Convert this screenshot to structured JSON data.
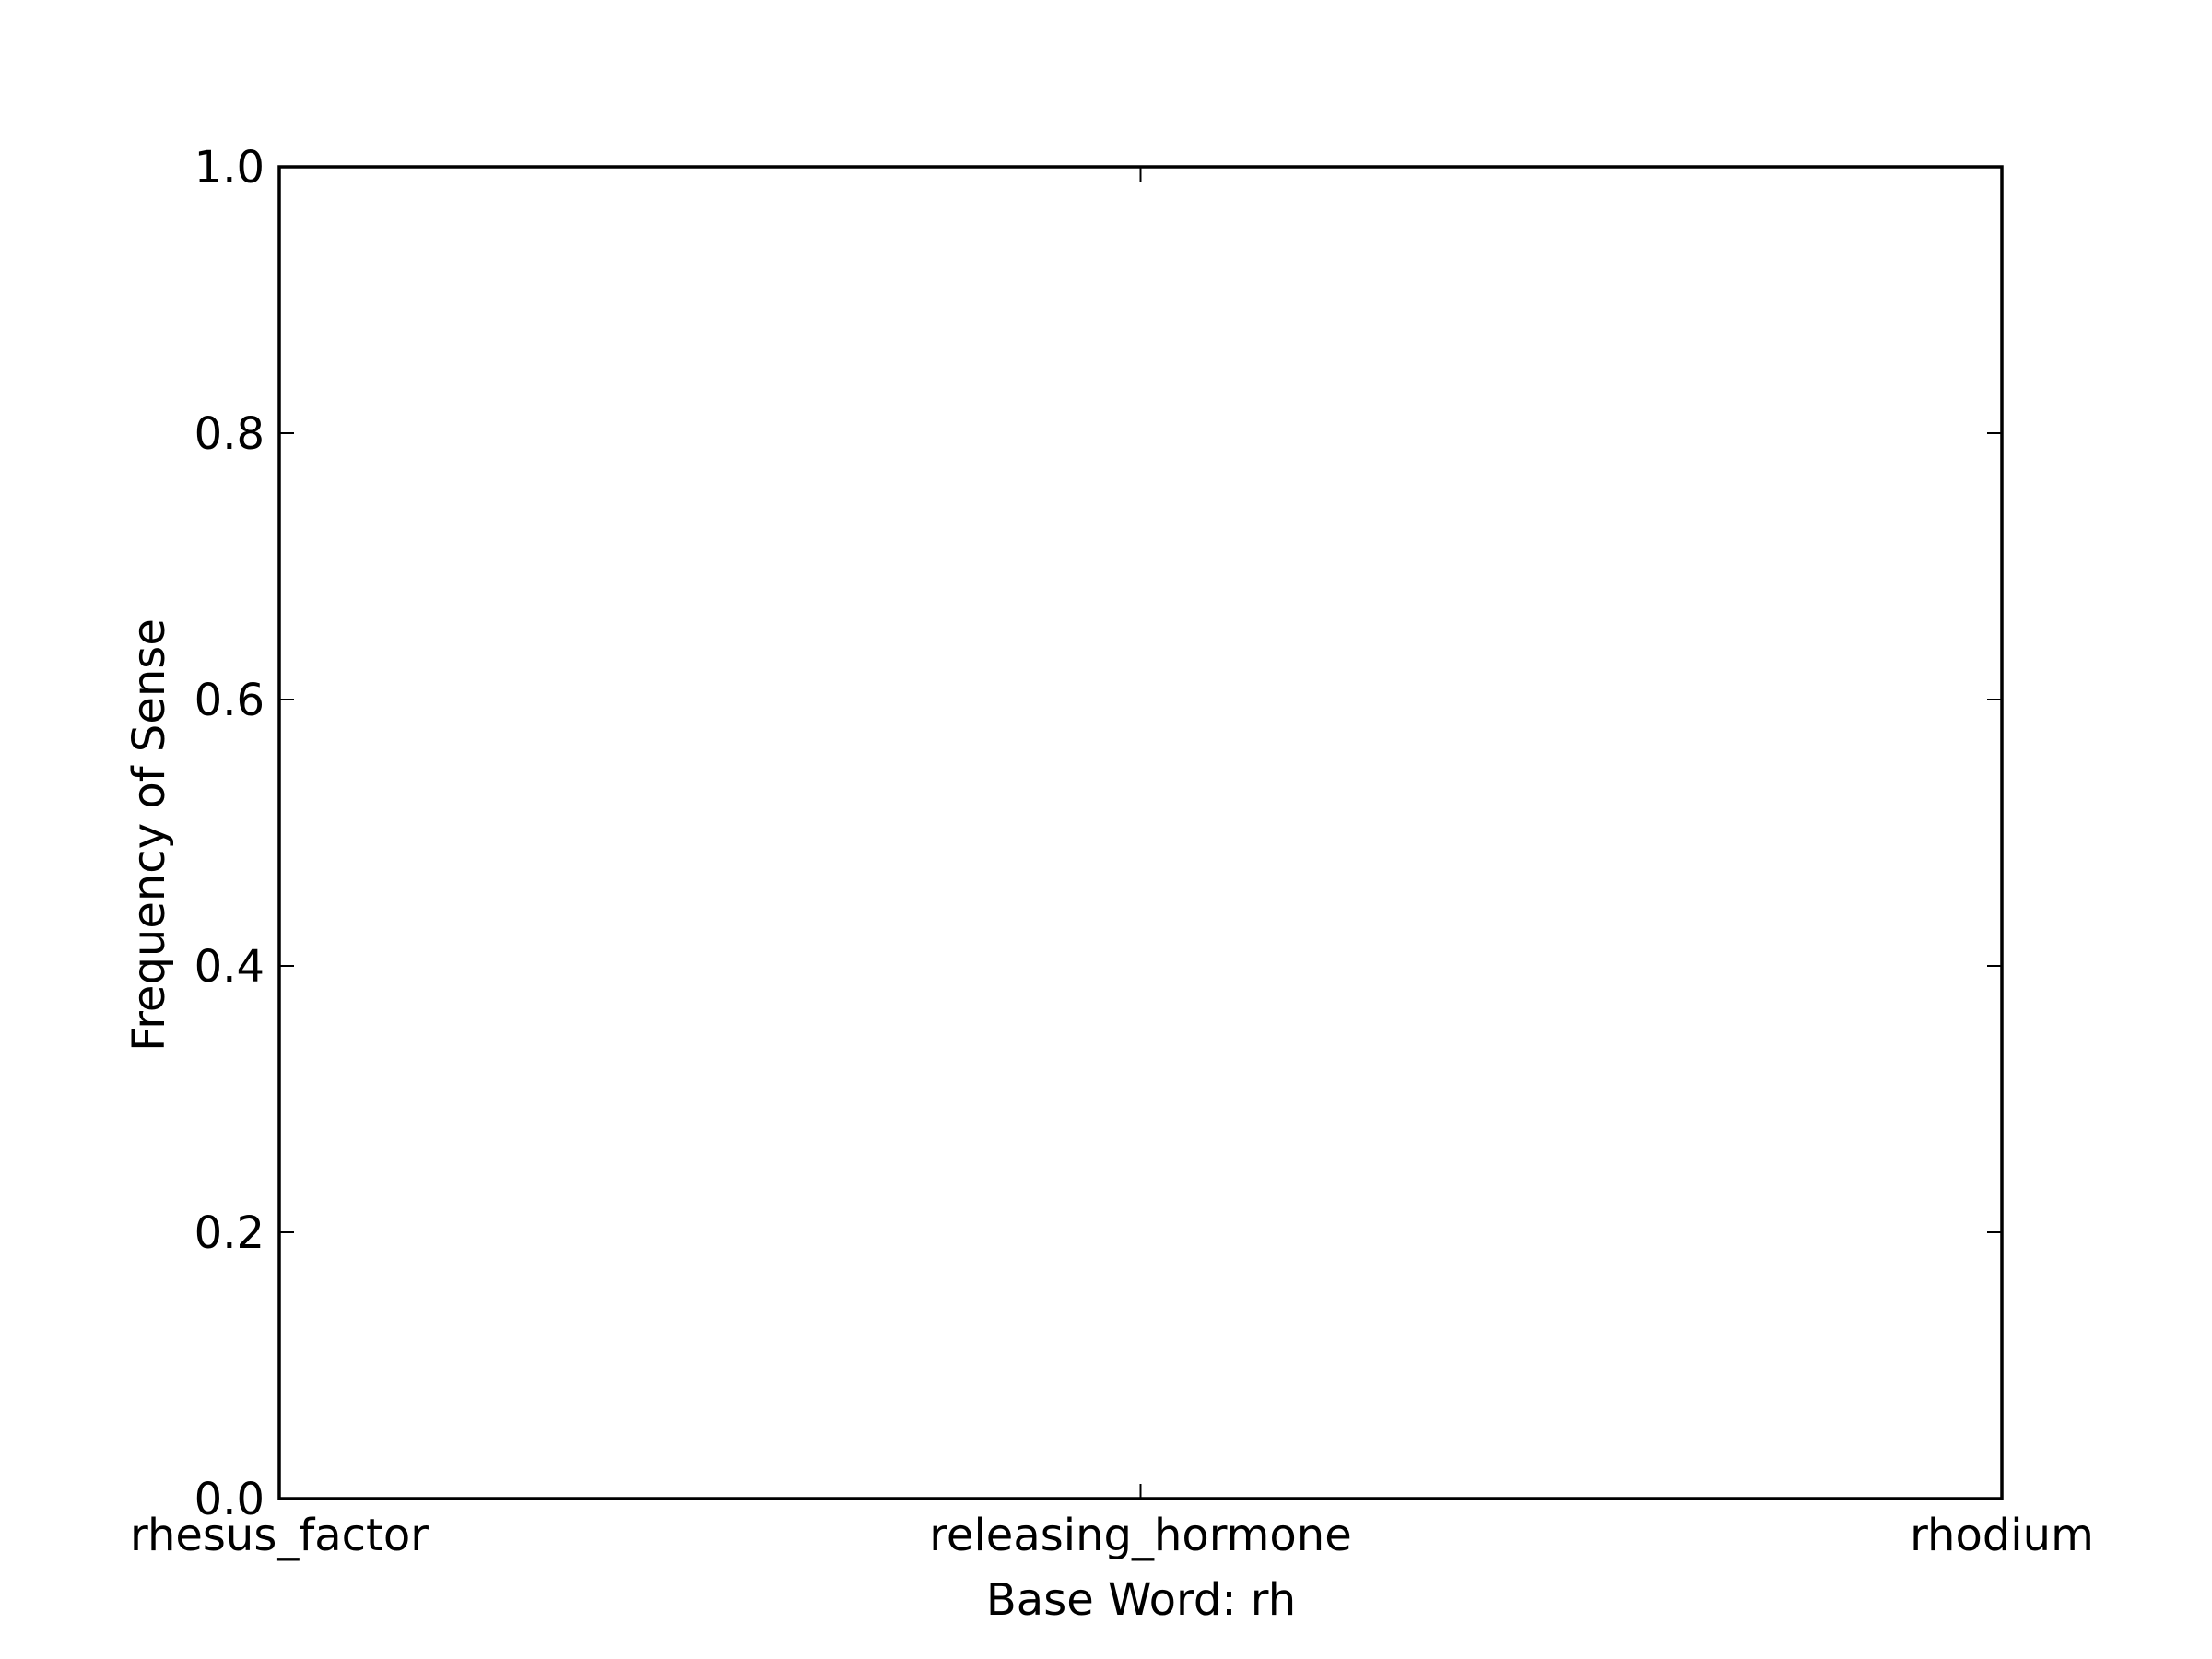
{
  "chart_data": {
    "type": "bar",
    "title": "",
    "xlabel": "Base Word: rh",
    "ylabel": "Frequency of Sense",
    "categories": [
      "rhesus_factor",
      "releasing_hormone",
      "rhodium"
    ],
    "values": [
      0.0,
      0.0,
      0.0
    ],
    "ylim": [
      0.0,
      1.0
    ],
    "yticks": [
      "0.0",
      "0.2",
      "0.4",
      "0.6",
      "0.8",
      "1.0"
    ],
    "grid": false,
    "legend": "none",
    "colors": {
      "axis": "#000000",
      "bar": "#000000",
      "background": "#ffffff"
    }
  }
}
